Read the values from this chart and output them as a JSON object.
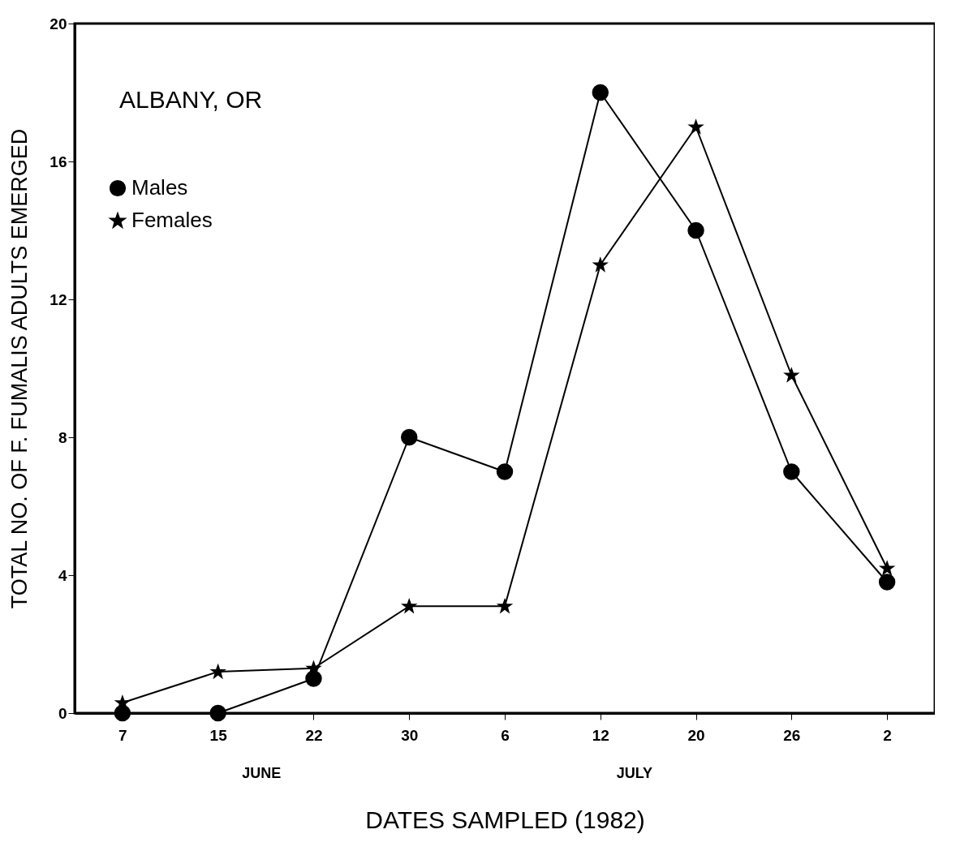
{
  "chart_data": {
    "type": "line",
    "xlabel": "DATES SAMPLED (1982)",
    "ylabel": "TOTAL NO. OF F. FUMALIS ADULTS EMERGED",
    "annotations": [
      "ALBANY, OR",
      "JUNE",
      "JULY"
    ],
    "categories": [
      "7",
      "15",
      "22",
      "30",
      "6",
      "12",
      "20",
      "26",
      "2"
    ],
    "series": [
      {
        "name": "Males",
        "color": "#000000",
        "marker": "circle",
        "values": [
          0,
          0,
          1,
          8,
          7,
          18,
          14,
          7,
          3.8
        ]
      },
      {
        "name": "Females",
        "color": "#000000",
        "marker": "star",
        "values": [
          0.3,
          1.2,
          1.3,
          3.1,
          3.1,
          13,
          17,
          9.8,
          4.2
        ]
      }
    ],
    "ylim": [
      0,
      20
    ],
    "yticks": [
      0,
      4,
      8,
      12,
      16,
      20
    ],
    "grid": false,
    "legend": "top left"
  }
}
